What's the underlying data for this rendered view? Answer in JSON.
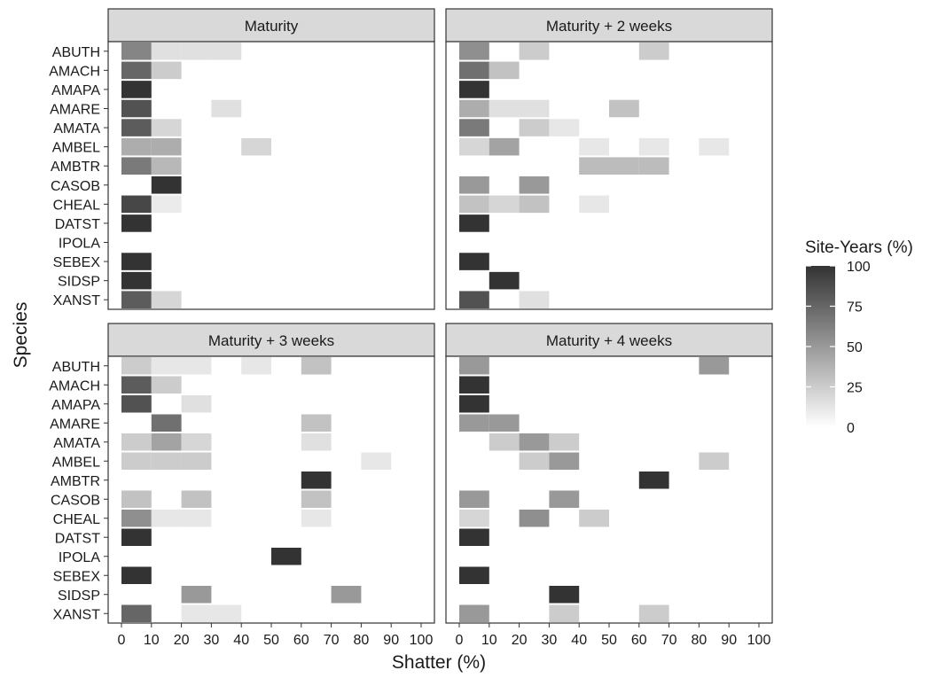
{
  "chart_data": {
    "type": "heatmap",
    "xlabel": "Shatter (%)",
    "ylabel": "Species",
    "x_ticks": [
      "0",
      "10",
      "20",
      "30",
      "40",
      "50",
      "60",
      "70",
      "80",
      "90",
      "100"
    ],
    "xlim": [
      0,
      100
    ],
    "species": [
      "ABUTH",
      "AMACH",
      "AMAPA",
      "AMARE",
      "AMATA",
      "AMBEL",
      "AMBTR",
      "CASOB",
      "CHEAL",
      "DATST",
      "IPOLA",
      "SEBEX",
      "SIDSP",
      "XANST"
    ],
    "legend": {
      "title": "Site-Years (%)",
      "ticks": [
        "100",
        "75",
        "50",
        "25",
        "0"
      ],
      "range": [
        0,
        100
      ],
      "color_low": "#ffffff",
      "color_high": "#333333"
    },
    "panels": [
      {
        "title": "Maturity",
        "cells": [
          {
            "species": "ABUTH",
            "bin": 0,
            "value": 60
          },
          {
            "species": "ABUTH",
            "bin": 10,
            "value": 15
          },
          {
            "species": "ABUTH",
            "bin": 20,
            "value": 15
          },
          {
            "species": "ABUTH",
            "bin": 30,
            "value": 15
          },
          {
            "species": "AMACH",
            "bin": 0,
            "value": 75
          },
          {
            "species": "AMACH",
            "bin": 10,
            "value": 25
          },
          {
            "species": "AMAPA",
            "bin": 0,
            "value": 100
          },
          {
            "species": "AMARE",
            "bin": 0,
            "value": 85
          },
          {
            "species": "AMARE",
            "bin": 30,
            "value": 15
          },
          {
            "species": "AMATA",
            "bin": 0,
            "value": 80
          },
          {
            "species": "AMATA",
            "bin": 10,
            "value": 20
          },
          {
            "species": "AMBEL",
            "bin": 0,
            "value": 40
          },
          {
            "species": "AMBEL",
            "bin": 10,
            "value": 40
          },
          {
            "species": "AMBEL",
            "bin": 40,
            "value": 20
          },
          {
            "species": "AMBTR",
            "bin": 0,
            "value": 65
          },
          {
            "species": "AMBTR",
            "bin": 10,
            "value": 35
          },
          {
            "species": "CASOB",
            "bin": 10,
            "value": 100
          },
          {
            "species": "CHEAL",
            "bin": 0,
            "value": 90
          },
          {
            "species": "CHEAL",
            "bin": 10,
            "value": 10
          },
          {
            "species": "DATST",
            "bin": 0,
            "value": 100
          },
          {
            "species": "SEBEX",
            "bin": 0,
            "value": 100
          },
          {
            "species": "SIDSP",
            "bin": 0,
            "value": 100
          },
          {
            "species": "XANST",
            "bin": 0,
            "value": 80
          },
          {
            "species": "XANST",
            "bin": 10,
            "value": 20
          }
        ]
      },
      {
        "title": "Maturity + 2 weeks",
        "cells": [
          {
            "species": "ABUTH",
            "bin": 0,
            "value": 55
          },
          {
            "species": "ABUTH",
            "bin": 20,
            "value": 25
          },
          {
            "species": "ABUTH",
            "bin": 60,
            "value": 25
          },
          {
            "species": "AMACH",
            "bin": 0,
            "value": 70
          },
          {
            "species": "AMACH",
            "bin": 10,
            "value": 30
          },
          {
            "species": "AMAPA",
            "bin": 0,
            "value": 100
          },
          {
            "species": "AMARE",
            "bin": 0,
            "value": 40
          },
          {
            "species": "AMARE",
            "bin": 10,
            "value": 15
          },
          {
            "species": "AMARE",
            "bin": 20,
            "value": 15
          },
          {
            "species": "AMARE",
            "bin": 50,
            "value": 30
          },
          {
            "species": "AMATA",
            "bin": 0,
            "value": 65
          },
          {
            "species": "AMATA",
            "bin": 20,
            "value": 25
          },
          {
            "species": "AMATA",
            "bin": 30,
            "value": 12
          },
          {
            "species": "AMBEL",
            "bin": 0,
            "value": 20
          },
          {
            "species": "AMBEL",
            "bin": 10,
            "value": 45
          },
          {
            "species": "AMBEL",
            "bin": 40,
            "value": 12
          },
          {
            "species": "AMBEL",
            "bin": 60,
            "value": 12
          },
          {
            "species": "AMBEL",
            "bin": 80,
            "value": 12
          },
          {
            "species": "AMBTR",
            "bin": 40,
            "value": 33
          },
          {
            "species": "AMBTR",
            "bin": 50,
            "value": 33
          },
          {
            "species": "AMBTR",
            "bin": 60,
            "value": 33
          },
          {
            "species": "CASOB",
            "bin": 0,
            "value": 50
          },
          {
            "species": "CASOB",
            "bin": 20,
            "value": 50
          },
          {
            "species": "CHEAL",
            "bin": 0,
            "value": 30
          },
          {
            "species": "CHEAL",
            "bin": 10,
            "value": 20
          },
          {
            "species": "CHEAL",
            "bin": 20,
            "value": 30
          },
          {
            "species": "CHEAL",
            "bin": 40,
            "value": 12
          },
          {
            "species": "DATST",
            "bin": 0,
            "value": 100
          },
          {
            "species": "SEBEX",
            "bin": 0,
            "value": 100
          },
          {
            "species": "SIDSP",
            "bin": 10,
            "value": 100
          },
          {
            "species": "XANST",
            "bin": 0,
            "value": 85
          },
          {
            "species": "XANST",
            "bin": 20,
            "value": 15
          }
        ]
      },
      {
        "title": "Maturity + 3 weeks",
        "cells": [
          {
            "species": "ABUTH",
            "bin": 0,
            "value": 25
          },
          {
            "species": "ABUTH",
            "bin": 10,
            "value": 12
          },
          {
            "species": "ABUTH",
            "bin": 20,
            "value": 12
          },
          {
            "species": "ABUTH",
            "bin": 40,
            "value": 12
          },
          {
            "species": "ABUTH",
            "bin": 60,
            "value": 30
          },
          {
            "species": "AMACH",
            "bin": 0,
            "value": 80
          },
          {
            "species": "AMACH",
            "bin": 10,
            "value": 25
          },
          {
            "species": "AMAPA",
            "bin": 0,
            "value": 85
          },
          {
            "species": "AMAPA",
            "bin": 20,
            "value": 15
          },
          {
            "species": "AMARE",
            "bin": 10,
            "value": 70
          },
          {
            "species": "AMARE",
            "bin": 60,
            "value": 30
          },
          {
            "species": "AMATA",
            "bin": 0,
            "value": 25
          },
          {
            "species": "AMATA",
            "bin": 10,
            "value": 45
          },
          {
            "species": "AMATA",
            "bin": 20,
            "value": 20
          },
          {
            "species": "AMATA",
            "bin": 60,
            "value": 15
          },
          {
            "species": "AMBEL",
            "bin": 0,
            "value": 25
          },
          {
            "species": "AMBEL",
            "bin": 10,
            "value": 25
          },
          {
            "species": "AMBEL",
            "bin": 20,
            "value": 25
          },
          {
            "species": "AMBEL",
            "bin": 80,
            "value": 12
          },
          {
            "species": "AMBTR",
            "bin": 60,
            "value": 100
          },
          {
            "species": "CASOB",
            "bin": 0,
            "value": 30
          },
          {
            "species": "CASOB",
            "bin": 20,
            "value": 30
          },
          {
            "species": "CASOB",
            "bin": 60,
            "value": 30
          },
          {
            "species": "CHEAL",
            "bin": 0,
            "value": 55
          },
          {
            "species": "CHEAL",
            "bin": 10,
            "value": 12
          },
          {
            "species": "CHEAL",
            "bin": 20,
            "value": 12
          },
          {
            "species": "CHEAL",
            "bin": 60,
            "value": 12
          },
          {
            "species": "DATST",
            "bin": 0,
            "value": 100
          },
          {
            "species": "IPOLA",
            "bin": 50,
            "value": 100
          },
          {
            "species": "SEBEX",
            "bin": 0,
            "value": 100
          },
          {
            "species": "SIDSP",
            "bin": 20,
            "value": 50
          },
          {
            "species": "SIDSP",
            "bin": 70,
            "value": 50
          },
          {
            "species": "XANST",
            "bin": 0,
            "value": 75
          },
          {
            "species": "XANST",
            "bin": 20,
            "value": 12
          },
          {
            "species": "XANST",
            "bin": 30,
            "value": 12
          }
        ]
      },
      {
        "title": "Maturity + 4 weeks",
        "cells": [
          {
            "species": "ABUTH",
            "bin": 0,
            "value": 50
          },
          {
            "species": "ABUTH",
            "bin": 80,
            "value": 50
          },
          {
            "species": "AMACH",
            "bin": 0,
            "value": 100
          },
          {
            "species": "AMAPA",
            "bin": 0,
            "value": 100
          },
          {
            "species": "AMARE",
            "bin": 0,
            "value": 50
          },
          {
            "species": "AMARE",
            "bin": 10,
            "value": 50
          },
          {
            "species": "AMATA",
            "bin": 10,
            "value": 25
          },
          {
            "species": "AMATA",
            "bin": 20,
            "value": 50
          },
          {
            "species": "AMATA",
            "bin": 30,
            "value": 25
          },
          {
            "species": "AMBEL",
            "bin": 20,
            "value": 25
          },
          {
            "species": "AMBEL",
            "bin": 30,
            "value": 50
          },
          {
            "species": "AMBEL",
            "bin": 80,
            "value": 25
          },
          {
            "species": "AMBTR",
            "bin": 60,
            "value": 100
          },
          {
            "species": "CASOB",
            "bin": 0,
            "value": 50
          },
          {
            "species": "CASOB",
            "bin": 30,
            "value": 50
          },
          {
            "species": "CHEAL",
            "bin": 0,
            "value": 20
          },
          {
            "species": "CHEAL",
            "bin": 20,
            "value": 55
          },
          {
            "species": "CHEAL",
            "bin": 40,
            "value": 25
          },
          {
            "species": "DATST",
            "bin": 0,
            "value": 100
          },
          {
            "species": "SEBEX",
            "bin": 0,
            "value": 100
          },
          {
            "species": "SIDSP",
            "bin": 30,
            "value": 100
          },
          {
            "species": "XANST",
            "bin": 0,
            "value": 50
          },
          {
            "species": "XANST",
            "bin": 30,
            "value": 25
          },
          {
            "species": "XANST",
            "bin": 60,
            "value": 25
          }
        ]
      }
    ]
  }
}
